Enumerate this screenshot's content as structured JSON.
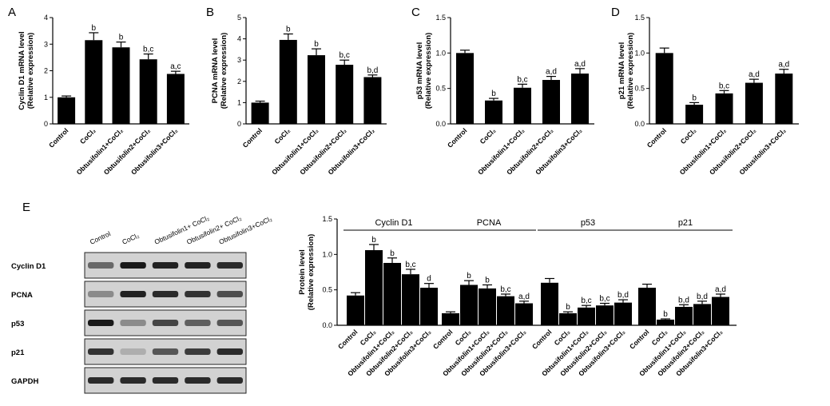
{
  "categories": [
    "Control",
    "CoCl₂",
    "Obtusifolin1+CoCl₂",
    "Obtusifolin2+CoCl₂",
    "Obtusifolin3+CoCl₂"
  ],
  "chart_data": [
    {
      "panel": "A",
      "type": "bar",
      "ylabel": [
        "Cyclin D1 mRNA level",
        "(Relative expression)"
      ],
      "ylim": [
        0,
        4
      ],
      "yticks": [
        0,
        1,
        2,
        3,
        4
      ],
      "values": [
        1.0,
        3.15,
        2.88,
        2.43,
        1.88
      ],
      "errors": [
        0.05,
        0.28,
        0.2,
        0.2,
        0.1
      ],
      "labels": [
        "",
        "b",
        "b",
        "b,c",
        "a,c"
      ]
    },
    {
      "panel": "B",
      "type": "bar",
      "ylabel": [
        "PCNA mRNA level",
        "(Relative expression)"
      ],
      "ylim": [
        0,
        5
      ],
      "yticks": [
        0,
        1,
        2,
        3,
        4,
        5
      ],
      "values": [
        1.0,
        3.95,
        3.23,
        2.78,
        2.2
      ],
      "errors": [
        0.07,
        0.28,
        0.3,
        0.22,
        0.1
      ],
      "labels": [
        "",
        "b",
        "b",
        "b,c",
        "b,d"
      ]
    },
    {
      "panel": "C",
      "type": "bar",
      "ylabel": [
        "p53 mRNA level",
        "(Relative expression)"
      ],
      "ylim": [
        0,
        1.5
      ],
      "yticks": [
        0.0,
        0.5,
        1.0,
        1.5
      ],
      "values": [
        1.0,
        0.33,
        0.51,
        0.62,
        0.71
      ],
      "errors": [
        0.04,
        0.03,
        0.05,
        0.05,
        0.07
      ],
      "labels": [
        "",
        "b",
        "b,c",
        "a,d",
        "a,d"
      ]
    },
    {
      "panel": "D",
      "type": "bar",
      "ylabel": [
        "p21 mRNA level",
        "(Relative expression)"
      ],
      "ylim": [
        0,
        1.5
      ],
      "yticks": [
        0.0,
        0.5,
        1.0,
        1.5
      ],
      "values": [
        1.0,
        0.27,
        0.43,
        0.58,
        0.71
      ],
      "errors": [
        0.07,
        0.03,
        0.04,
        0.05,
        0.06
      ],
      "labels": [
        "",
        "b",
        "b,c",
        "a,d",
        "a,d"
      ]
    },
    {
      "panel": "E",
      "type": "bar",
      "ylabel": [
        "Protein level",
        "(Relative expression)"
      ],
      "ylim": [
        0,
        1.5
      ],
      "yticks": [
        0.0,
        0.5,
        1.0,
        1.5
      ],
      "groups": [
        {
          "name": "Cyclin D1",
          "values": [
            0.42,
            1.06,
            0.88,
            0.72,
            0.53
          ],
          "errors": [
            0.04,
            0.08,
            0.07,
            0.07,
            0.06
          ],
          "labels": [
            "",
            "b",
            "b",
            "b,c",
            "d"
          ]
        },
        {
          "name": "PCNA",
          "values": [
            0.17,
            0.57,
            0.52,
            0.41,
            0.31
          ],
          "errors": [
            0.02,
            0.06,
            0.05,
            0.03,
            0.03
          ],
          "labels": [
            "",
            "b",
            "b",
            "b,c",
            "a,d"
          ]
        },
        {
          "name": "p53",
          "values": [
            0.6,
            0.17,
            0.25,
            0.28,
            0.32
          ],
          "errors": [
            0.06,
            0.02,
            0.03,
            0.03,
            0.04
          ],
          "labels": [
            "",
            "b",
            "b,c",
            "b,c",
            "b,d"
          ]
        },
        {
          "name": "p21",
          "values": [
            0.53,
            0.08,
            0.26,
            0.3,
            0.4
          ],
          "errors": [
            0.05,
            0.01,
            0.03,
            0.04,
            0.04
          ],
          "labels": [
            "",
            "b",
            "b,d",
            "b,d",
            "a,d"
          ]
        }
      ]
    }
  ],
  "western_blot": {
    "panel": "E",
    "columns": [
      "Control",
      "CoCl₂",
      "Obtusifolin1+ CoCl₂",
      "Obtusifolin2+ CoCl₂",
      "Obtusifolin3+CoCl₂"
    ],
    "rows": [
      {
        "name": "Cyclin D1",
        "intensity": [
          0.55,
          1.0,
          0.95,
          0.95,
          0.9
        ]
      },
      {
        "name": "PCNA",
        "intensity": [
          0.35,
          0.95,
          0.9,
          0.85,
          0.7
        ]
      },
      {
        "name": "p53",
        "intensity": [
          1.0,
          0.35,
          0.75,
          0.6,
          0.65
        ]
      },
      {
        "name": "p21",
        "intensity": [
          0.85,
          0.15,
          0.65,
          0.8,
          0.9
        ]
      },
      {
        "name": "GAPDH",
        "intensity": [
          0.9,
          0.9,
          0.9,
          0.9,
          0.9
        ]
      }
    ]
  }
}
